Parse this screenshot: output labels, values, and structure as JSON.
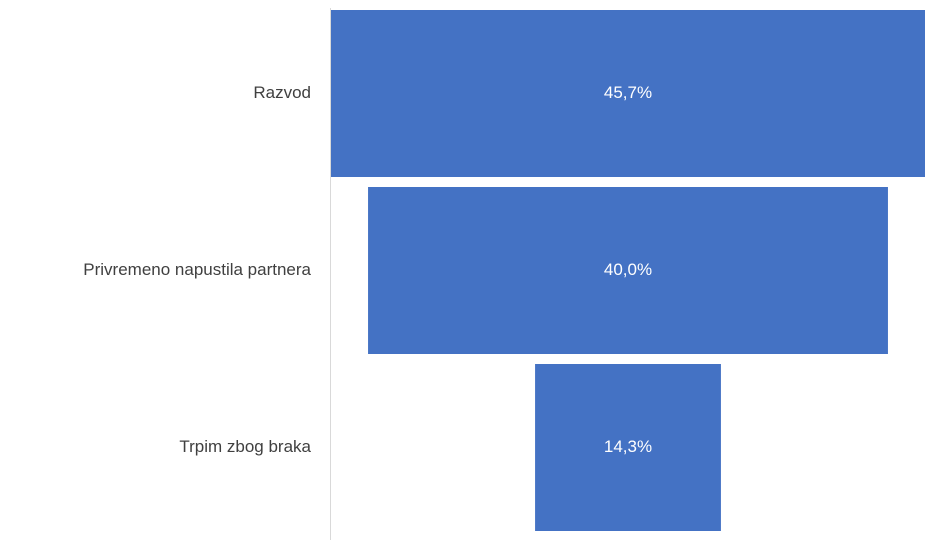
{
  "chart_data": {
    "type": "funnel",
    "categories": [
      "Razvod",
      "Privremeno napustila partnera",
      "Trpim zbog braka"
    ],
    "values": [
      45.7,
      40.0,
      14.3
    ],
    "value_labels": [
      "45,7%",
      "40,0%",
      "14,3%"
    ],
    "color": "#4472c4"
  }
}
